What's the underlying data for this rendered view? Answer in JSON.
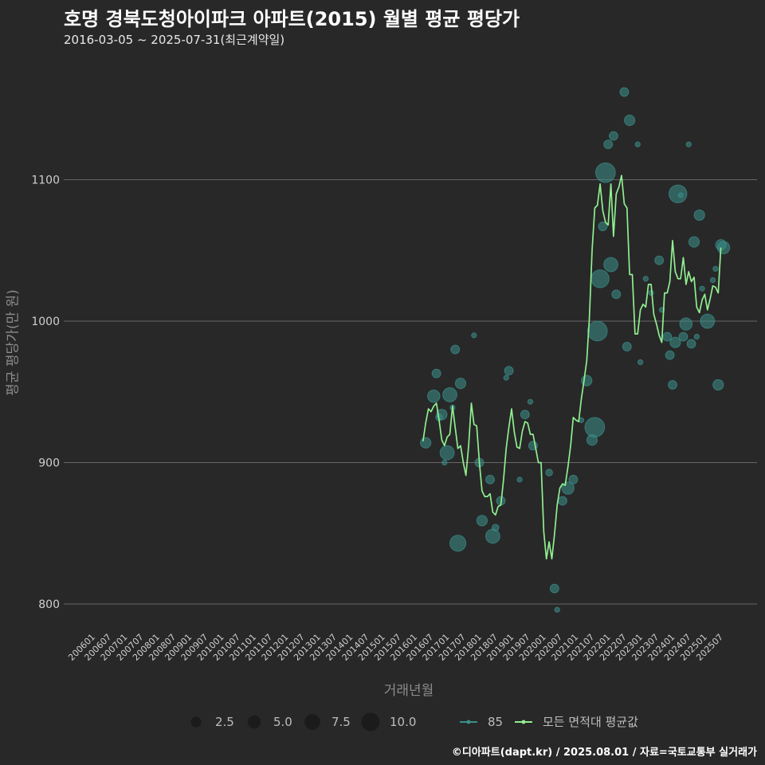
{
  "header": {
    "title": "호명 경북도청아이파크 아파트(2015) 월별 평균 평당가",
    "subtitle": "2016-03-05 ~ 2025-07-31(최근계약일)",
    "caption": "©디아파트(dapt.kr) / 2025.08.01 / 자료=국토교통부 실거래가"
  },
  "chart_data": {
    "type": "scatter+line",
    "title": "호명 경북도청아이파크 아파트(2015) 월별 평균 평당가",
    "xlabel": "거래년월",
    "ylabel": "평균 평당가(만 원)",
    "ylim": [
      782,
      1182
    ],
    "y_ticks": [
      800,
      900,
      1000,
      1100
    ],
    "x_ticks": [
      "200601",
      "200607",
      "200701",
      "200707",
      "200801",
      "200807",
      "200901",
      "200907",
      "201001",
      "201007",
      "201101",
      "201107",
      "201201",
      "201207",
      "201301",
      "201307",
      "201401",
      "201407",
      "201501",
      "201507",
      "201601",
      "201607",
      "201701",
      "201707",
      "201801",
      "201807",
      "201901",
      "201907",
      "202001",
      "202007",
      "202101",
      "202107",
      "202201",
      "202207",
      "202301",
      "202307",
      "202401",
      "202407",
      "202501",
      "202507"
    ],
    "colors": {
      "line": "#90ee90",
      "points": "#3a8f8a",
      "grid": "#666666"
    },
    "size_legend": [
      {
        "label": "2.5",
        "value": 2.5
      },
      {
        "label": "5.0",
        "value": 5.0
      },
      {
        "label": "7.5",
        "value": 7.5
      },
      {
        "label": "10.0",
        "value": 10.0
      }
    ],
    "color_legend": [
      {
        "label": "85",
        "kind": "points"
      },
      {
        "label": "모든 면적대 평균값",
        "kind": "line"
      }
    ],
    "line_series": {
      "name": "모든 면적대 평균값",
      "start": "2016-03",
      "values": [
        915,
        928,
        938,
        936,
        940,
        942,
        930,
        916,
        912,
        918,
        920,
        940,
        925,
        910,
        912,
        900,
        891,
        912,
        942,
        927,
        926,
        900,
        880,
        876,
        876,
        878,
        865,
        863,
        869,
        870,
        888,
        910,
        925,
        938,
        922,
        911,
        910,
        922,
        929,
        928,
        920,
        920,
        910,
        900,
        900,
        851,
        832,
        844,
        832,
        849,
        870,
        882,
        885,
        884,
        897,
        912,
        932,
        930,
        929,
        945,
        958,
        972,
        1002,
        1050,
        1080,
        1082,
        1097,
        1078,
        1070,
        1068,
        1097,
        1060,
        1090,
        1095,
        1103,
        1083,
        1080,
        1033,
        1033,
        991,
        991,
        1008,
        1012,
        1010,
        1026,
        1026,
        1005,
        998,
        990,
        985,
        1020,
        1020,
        1028,
        1057,
        1035,
        1030,
        1030,
        1045,
        1026,
        1035,
        1028,
        1031,
        1010,
        1006,
        1015,
        1019,
        1008,
        1016,
        1025,
        1024,
        1020,
        1052
      ]
    },
    "points": [
      {
        "x": "2016-04",
        "y": 914,
        "size": 4
      },
      {
        "x": "2016-07",
        "y": 947,
        "size": 5
      },
      {
        "x": "2016-08",
        "y": 963,
        "size": 3
      },
      {
        "x": "2016-09",
        "y": 932,
        "size": 2
      },
      {
        "x": "2016-10",
        "y": 934,
        "size": 4
      },
      {
        "x": "2016-11",
        "y": 900,
        "size": 1
      },
      {
        "x": "2016-12",
        "y": 907,
        "size": 6
      },
      {
        "x": "2017-01",
        "y": 948,
        "size": 6
      },
      {
        "x": "2017-02",
        "y": 939,
        "size": 1
      },
      {
        "x": "2017-03",
        "y": 980,
        "size": 3
      },
      {
        "x": "2017-04",
        "y": 843,
        "size": 7
      },
      {
        "x": "2017-05",
        "y": 956,
        "size": 4
      },
      {
        "x": "2017-10",
        "y": 990,
        "size": 1
      },
      {
        "x": "2017-12",
        "y": 900,
        "size": 3
      },
      {
        "x": "2018-01",
        "y": 859,
        "size": 4
      },
      {
        "x": "2018-04",
        "y": 888,
        "size": 3
      },
      {
        "x": "2018-05",
        "y": 848,
        "size": 6
      },
      {
        "x": "2018-06",
        "y": 854,
        "size": 2
      },
      {
        "x": "2018-08",
        "y": 873,
        "size": 3
      },
      {
        "x": "2018-10",
        "y": 960,
        "size": 1
      },
      {
        "x": "2018-11",
        "y": 965,
        "size": 3
      },
      {
        "x": "2019-03",
        "y": 888,
        "size": 1
      },
      {
        "x": "2019-05",
        "y": 934,
        "size": 3
      },
      {
        "x": "2019-07",
        "y": 943,
        "size": 1
      },
      {
        "x": "2019-08",
        "y": 912,
        "size": 3
      },
      {
        "x": "2020-02",
        "y": 893,
        "size": 2
      },
      {
        "x": "2020-04",
        "y": 811,
        "size": 3
      },
      {
        "x": "2020-05",
        "y": 796,
        "size": 1
      },
      {
        "x": "2020-07",
        "y": 873,
        "size": 3
      },
      {
        "x": "2020-09",
        "y": 882,
        "size": 5
      },
      {
        "x": "2020-11",
        "y": 888,
        "size": 3
      },
      {
        "x": "2021-02",
        "y": 930,
        "size": 1
      },
      {
        "x": "2021-04",
        "y": 958,
        "size": 4
      },
      {
        "x": "2021-06",
        "y": 916,
        "size": 4
      },
      {
        "x": "2021-07",
        "y": 925,
        "size": 9
      },
      {
        "x": "2021-08",
        "y": 993,
        "size": 9
      },
      {
        "x": "2021-09",
        "y": 1030,
        "size": 8
      },
      {
        "x": "2021-10",
        "y": 1067,
        "size": 3
      },
      {
        "x": "2021-11",
        "y": 1105,
        "size": 9
      },
      {
        "x": "2021-12",
        "y": 1125,
        "size": 3
      },
      {
        "x": "2022-01",
        "y": 1040,
        "size": 6
      },
      {
        "x": "2022-02",
        "y": 1131,
        "size": 3
      },
      {
        "x": "2022-03",
        "y": 1019,
        "size": 3
      },
      {
        "x": "2022-06",
        "y": 1162,
        "size": 3
      },
      {
        "x": "2022-07",
        "y": 982,
        "size": 3
      },
      {
        "x": "2022-08",
        "y": 1142,
        "size": 4
      },
      {
        "x": "2022-11",
        "y": 1125,
        "size": 1
      },
      {
        "x": "2022-12",
        "y": 971,
        "size": 1
      },
      {
        "x": "2023-02",
        "y": 1030,
        "size": 1
      },
      {
        "x": "2023-04",
        "y": 1020,
        "size": 1
      },
      {
        "x": "2023-07",
        "y": 1043,
        "size": 3
      },
      {
        "x": "2023-08",
        "y": 1008,
        "size": 1
      },
      {
        "x": "2023-10",
        "y": 989,
        "size": 3
      },
      {
        "x": "2023-11",
        "y": 976,
        "size": 3
      },
      {
        "x": "2023-12",
        "y": 955,
        "size": 3
      },
      {
        "x": "2024-01",
        "y": 985,
        "size": 4
      },
      {
        "x": "2024-02",
        "y": 1090,
        "size": 8
      },
      {
        "x": "2024-03",
        "y": 1089,
        "size": 1
      },
      {
        "x": "2024-04",
        "y": 989,
        "size": 3
      },
      {
        "x": "2024-05",
        "y": 998,
        "size": 5
      },
      {
        "x": "2024-06",
        "y": 1125,
        "size": 1
      },
      {
        "x": "2024-07",
        "y": 984,
        "size": 3
      },
      {
        "x": "2024-08",
        "y": 1056,
        "size": 4
      },
      {
        "x": "2024-09",
        "y": 989,
        "size": 1
      },
      {
        "x": "2024-10",
        "y": 1075,
        "size": 4
      },
      {
        "x": "2024-11",
        "y": 1023,
        "size": 1
      },
      {
        "x": "2025-01",
        "y": 1000,
        "size": 6
      },
      {
        "x": "2025-03",
        "y": 1029,
        "size": 1
      },
      {
        "x": "2025-04",
        "y": 1037,
        "size": 1
      },
      {
        "x": "2025-05",
        "y": 955,
        "size": 4
      },
      {
        "x": "2025-06",
        "y": 1054,
        "size": 4
      },
      {
        "x": "2025-07",
        "y": 1052,
        "size": 5
      }
    ]
  }
}
